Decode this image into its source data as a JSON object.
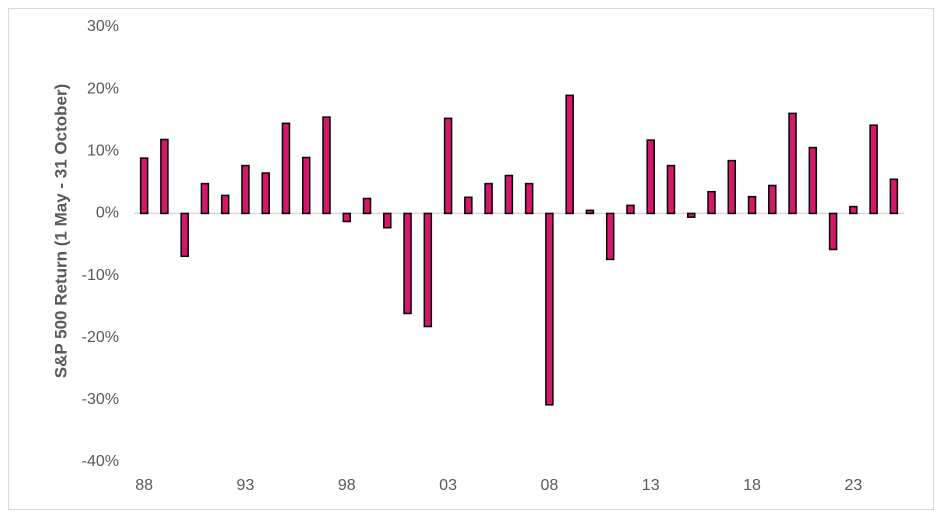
{
  "chart_data": {
    "type": "bar",
    "y_axis_label": "S&P 500 Return (1 May - 31 October)",
    "categories": [
      "88",
      null,
      null,
      null,
      null,
      "93",
      null,
      null,
      null,
      null,
      "98",
      null,
      null,
      null,
      null,
      "03",
      null,
      null,
      null,
      null,
      "08",
      null,
      null,
      null,
      null,
      "13",
      null,
      null,
      null,
      null,
      "18",
      null,
      null,
      null,
      null,
      "23",
      null,
      null
    ],
    "values": [
      8.9,
      11.9,
      -6.9,
      4.8,
      2.9,
      7.7,
      6.5,
      14.5,
      9.0,
      15.5,
      -1.3,
      2.4,
      -2.3,
      -16.1,
      -18.2,
      15.3,
      2.6,
      4.8,
      6.1,
      4.8,
      -30.8,
      19.0,
      0.5,
      -7.4,
      1.3,
      11.8,
      7.7,
      -0.6,
      3.5,
      8.5,
      2.7,
      4.5,
      16.1,
      10.6,
      -5.8,
      1.1,
      14.2,
      5.5
    ],
    "color": "#d6186a",
    "ylim": [
      -40,
      30
    ],
    "yticks": [
      {
        "value": -40,
        "label": "-40%"
      },
      {
        "value": -30,
        "label": "-30%"
      },
      {
        "value": -20,
        "label": "-20%"
      },
      {
        "value": -10,
        "label": "-10%"
      },
      {
        "value": 0,
        "label": "0%"
      },
      {
        "value": 10,
        "label": "10%"
      },
      {
        "value": 20,
        "label": "20%"
      },
      {
        "value": 30,
        "label": "30%"
      }
    ],
    "grid": false
  }
}
